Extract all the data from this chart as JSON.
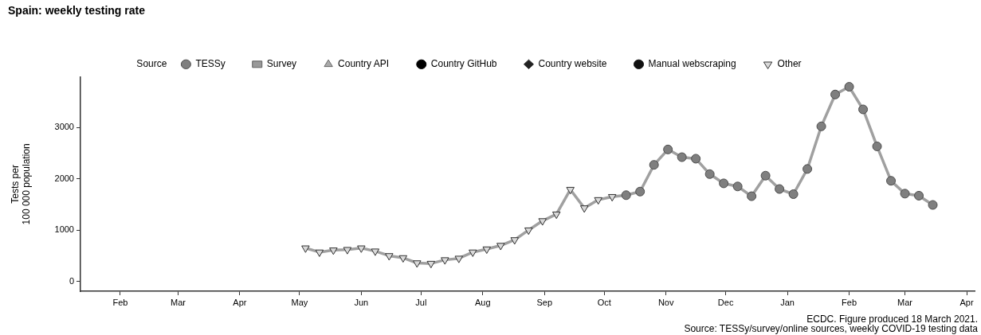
{
  "chart_data": {
    "type": "line",
    "title": "Spain: weekly testing rate",
    "ylabel": "Tests per\n100 000 population",
    "legend_title": "Source",
    "legend": "top",
    "grid": false,
    "x": [
      "2020-05-04",
      "2020-05-11",
      "2020-05-18",
      "2020-05-25",
      "2020-06-01",
      "2020-06-08",
      "2020-06-15",
      "2020-06-22",
      "2020-06-29",
      "2020-07-06",
      "2020-07-13",
      "2020-07-20",
      "2020-07-27",
      "2020-08-03",
      "2020-08-10",
      "2020-08-17",
      "2020-08-24",
      "2020-08-31",
      "2020-09-07",
      "2020-09-14",
      "2020-09-21",
      "2020-09-28",
      "2020-10-05",
      "2020-10-12",
      "2020-10-19",
      "2020-10-26",
      "2020-11-02",
      "2020-11-09",
      "2020-11-16",
      "2020-11-23",
      "2020-11-30",
      "2020-12-07",
      "2020-12-14",
      "2020-12-21",
      "2020-12-28",
      "2021-01-04",
      "2021-01-11",
      "2021-01-18",
      "2021-01-25",
      "2021-02-01",
      "2021-02-08",
      "2021-02-15",
      "2021-02-22",
      "2021-03-01",
      "2021-03-08",
      "2021-03-15"
    ],
    "xlim": [
      "2020-01-12",
      "2021-04-05"
    ],
    "xticks": [
      {
        "value": "2020-02-01",
        "label": "Feb"
      },
      {
        "value": "2020-03-01",
        "label": "Mar"
      },
      {
        "value": "2020-04-01",
        "label": "Apr"
      },
      {
        "value": "2020-05-01",
        "label": "May"
      },
      {
        "value": "2020-06-01",
        "label": "Jun"
      },
      {
        "value": "2020-07-01",
        "label": "Jul"
      },
      {
        "value": "2020-08-01",
        "label": "Aug"
      },
      {
        "value": "2020-09-01",
        "label": "Sep"
      },
      {
        "value": "2020-10-01",
        "label": "Oct"
      },
      {
        "value": "2020-11-01",
        "label": "Nov"
      },
      {
        "value": "2020-12-01",
        "label": "Dec"
      },
      {
        "value": "2021-01-01",
        "label": "Jan"
      },
      {
        "value": "2021-02-01",
        "label": "Feb"
      },
      {
        "value": "2021-03-01",
        "label": "Mar"
      },
      {
        "value": "2021-04-01",
        "label": "Apr"
      }
    ],
    "ylim": [
      -190,
      3980
    ],
    "yticks": [
      0,
      1000,
      2000,
      3000
    ],
    "series": [
      {
        "color": "#a0a0a0",
        "marker": "none",
        "line_style": "solid",
        "values": [
          650,
          570,
          610,
          620,
          650,
          590,
          500,
          460,
          360,
          350,
          420,
          450,
          570,
          630,
          700,
          810,
          1000,
          1180,
          1310,
          1790,
          1430,
          1590,
          1650,
          1680,
          1750,
          2270,
          2570,
          2420,
          2390,
          2090,
          1910,
          1850,
          1660,
          2060,
          1800,
          1700,
          2190,
          3020,
          3640,
          3790,
          3350,
          2630,
          1960,
          1710,
          1670,
          1490
        ]
      },
      {
        "type": "scatter",
        "name": "TESSy",
        "color": "#7f7f7f",
        "marker": "circle",
        "values": [
          null,
          null,
          null,
          null,
          null,
          null,
          null,
          null,
          null,
          null,
          null,
          null,
          null,
          null,
          null,
          null,
          null,
          null,
          null,
          null,
          null,
          null,
          null,
          1680,
          1750,
          2270,
          2570,
          2420,
          2390,
          2090,
          1910,
          1850,
          1660,
          2060,
          1800,
          1700,
          2190,
          3020,
          3640,
          3790,
          3350,
          2630,
          1960,
          1710,
          1670,
          1490
        ]
      },
      {
        "type": "scatter",
        "name": "Survey",
        "color": "#999999",
        "marker": "square",
        "values": [
          null,
          null,
          null,
          null,
          null,
          null,
          null,
          null,
          null,
          null,
          null,
          null,
          null,
          null,
          null,
          null,
          null,
          null,
          null,
          null,
          null,
          null,
          null,
          null,
          null,
          null,
          null,
          null,
          null,
          null,
          null,
          null,
          null,
          null,
          null,
          null,
          null,
          null,
          null,
          null,
          null,
          null,
          null,
          null,
          null,
          null
        ]
      },
      {
        "type": "scatter",
        "name": "Country API",
        "color": "#aaaaaa",
        "marker": "triangle",
        "values": [
          null,
          null,
          null,
          null,
          null,
          null,
          null,
          null,
          null,
          null,
          null,
          null,
          null,
          null,
          null,
          null,
          null,
          null,
          null,
          null,
          null,
          null,
          null,
          null,
          null,
          null,
          null,
          null,
          null,
          null,
          null,
          null,
          null,
          null,
          null,
          null,
          null,
          null,
          null,
          null,
          null,
          null,
          null,
          null,
          null,
          null
        ]
      },
      {
        "type": "scatter",
        "name": "Country GitHub",
        "color": "#000000",
        "marker": "circle",
        "values": [
          null,
          null,
          null,
          null,
          null,
          null,
          null,
          null,
          null,
          null,
          null,
          null,
          null,
          null,
          null,
          null,
          null,
          null,
          null,
          null,
          null,
          null,
          null,
          null,
          null,
          null,
          null,
          null,
          null,
          null,
          null,
          null,
          null,
          null,
          null,
          null,
          null,
          null,
          null,
          null,
          null,
          null,
          null,
          null,
          null,
          null
        ]
      },
      {
        "type": "scatter",
        "name": "Country website",
        "color": "#222222",
        "marker": "diamond",
        "values": [
          null,
          null,
          null,
          null,
          null,
          null,
          null,
          null,
          null,
          null,
          null,
          null,
          null,
          null,
          null,
          null,
          null,
          null,
          null,
          null,
          null,
          null,
          null,
          null,
          null,
          null,
          null,
          null,
          null,
          null,
          null,
          null,
          null,
          null,
          null,
          null,
          null,
          null,
          null,
          null,
          null,
          null,
          null,
          null,
          null,
          null
        ]
      },
      {
        "type": "scatter",
        "name": "Manual webscraping",
        "color": "#111111",
        "marker": "circle",
        "values": [
          null,
          null,
          null,
          null,
          null,
          null,
          null,
          null,
          null,
          null,
          null,
          null,
          null,
          null,
          null,
          null,
          null,
          null,
          null,
          null,
          null,
          null,
          null,
          null,
          null,
          null,
          null,
          null,
          null,
          null,
          null,
          null,
          null,
          null,
          null,
          null,
          null,
          null,
          null,
          null,
          null,
          null,
          null,
          null,
          null,
          null
        ]
      },
      {
        "type": "scatter",
        "name": "Other",
        "color": "#d9d9d9",
        "marker": "triangle-down",
        "values": [
          650,
          570,
          610,
          620,
          650,
          590,
          500,
          460,
          360,
          350,
          420,
          450,
          570,
          630,
          700,
          810,
          1000,
          1180,
          1310,
          1790,
          1430,
          1590,
          1650,
          null,
          null,
          null,
          null,
          null,
          null,
          null,
          null,
          null,
          null,
          null,
          null,
          null,
          null,
          null,
          null,
          null,
          null,
          null,
          null,
          null,
          null,
          null
        ]
      }
    ],
    "annotations": [
      "ECDC. Figure produced 18 March 2021.",
      "Source: TESSy/survey/online sources, weekly COVID-19 testing data"
    ]
  }
}
